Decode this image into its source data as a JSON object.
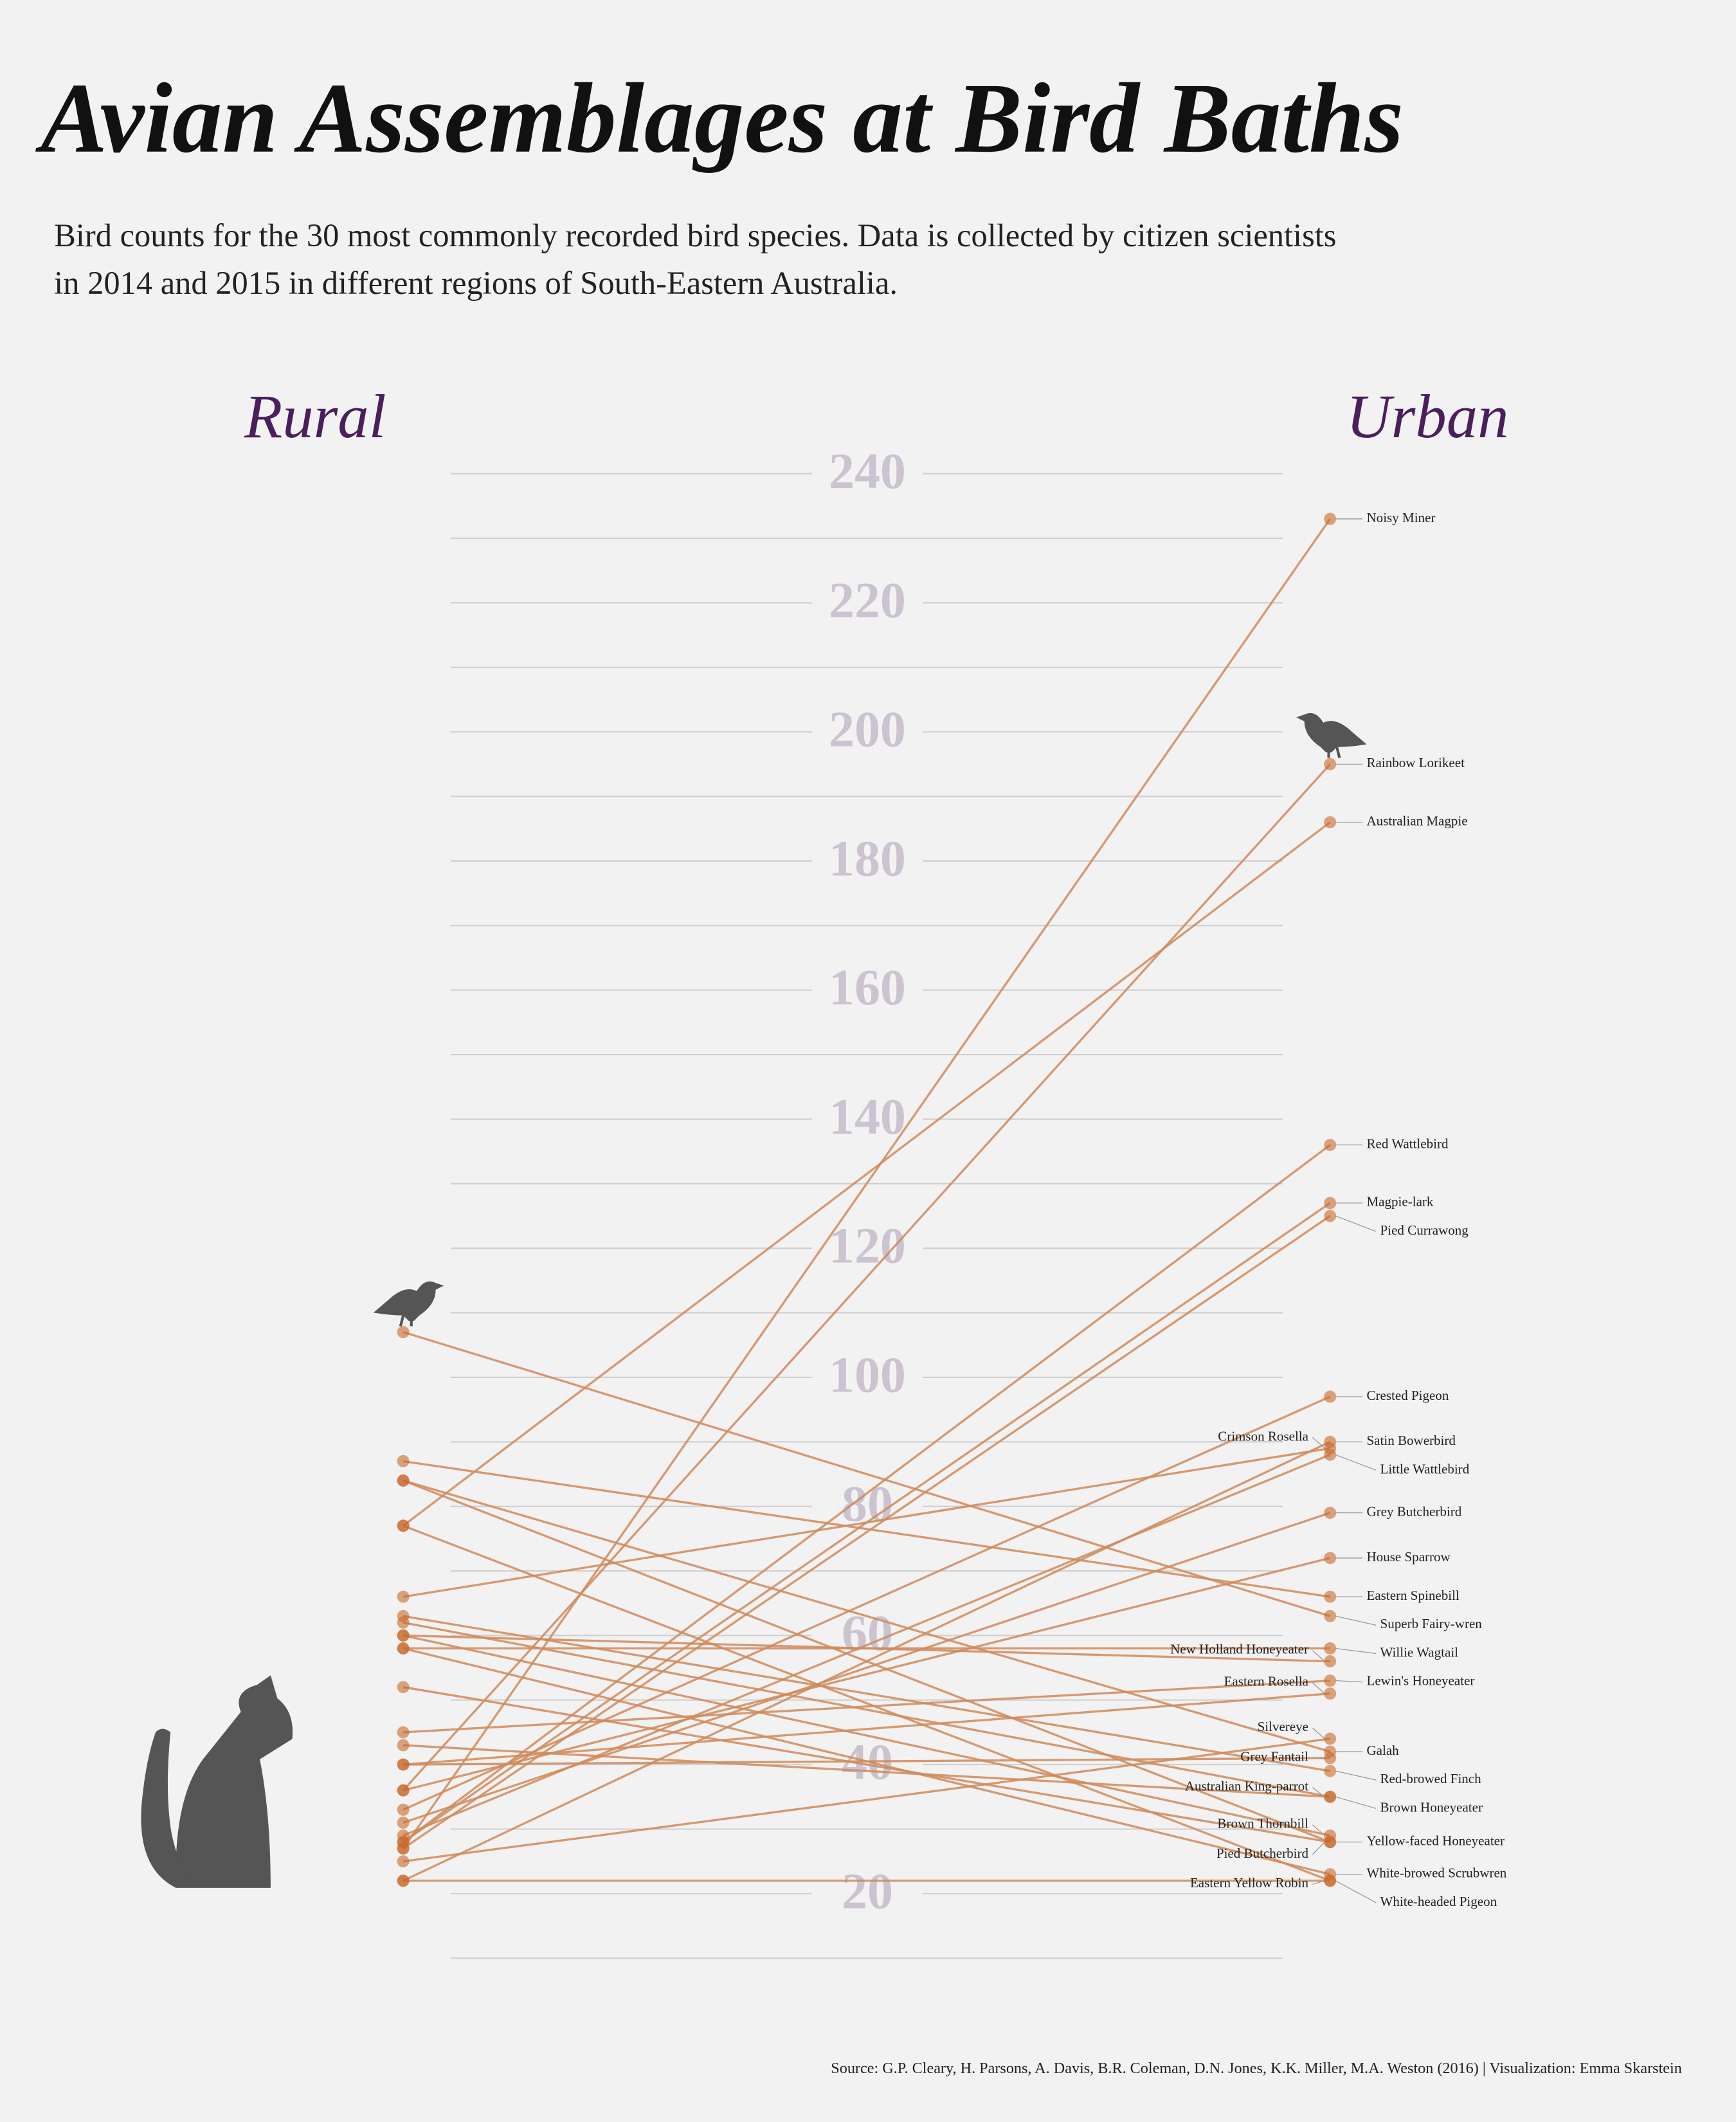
{
  "chart_data": {
    "type": "slope",
    "title": "Avian Assemblages at Bird Baths",
    "subtitle": [
      "Bird counts for the 30 most commonly recorded bird species. Data is collected by citizen scientists",
      "in 2014 and 2015 in different regions of South-Eastern Australia."
    ],
    "source": "Source: G.P. Cleary, H. Parsons, A. Davis, B.R. Coleman, D.N. Jones, K.K. Miller, M.A. Weston (2016)  |  Visualization: Emma Skarstein",
    "categories": [
      "Noisy Miner",
      "Rainbow Lorikeet",
      "Australian Magpie",
      "Red Wattlebird",
      "Magpie-lark",
      "Pied Currawong",
      "Crested Pigeon",
      "Crimson Rosella",
      "Satin Bowerbird",
      "Little Wattlebird",
      "Grey Butcherbird",
      "House Sparrow",
      "Eastern Spinebill",
      "Superb Fairy-wren",
      "Willie Wagtail",
      "New Holland Honeyeater",
      "Lewin's Honeyeater",
      "Eastern Rosella",
      "Silvereye",
      "Galah",
      "Grey Fantail",
      "Red-browed Finch",
      "Australian King-parrot",
      "Brown Honeyeater",
      "Brown Thornbill",
      "Yellow-faced Honeyeater",
      "Pied Butcherbird",
      "White-browed Scrubwren",
      "Eastern Yellow Robin",
      "White-headed Pigeon"
    ],
    "series": [
      {
        "name": "Rural",
        "color": "#c8692a",
        "values": [
          27,
          36,
          77,
          28,
          28,
          27,
          33,
          66,
          22,
          29,
          31,
          36,
          87,
          107,
          58,
          60,
          45,
          40,
          25,
          84,
          40,
          63,
          62,
          43,
          60,
          84,
          52,
          58,
          22,
          77
        ]
      },
      {
        "name": "Urban",
        "color": "#c8692a",
        "values": [
          233,
          195,
          186,
          136,
          127,
          125,
          97,
          89,
          90,
          88,
          79,
          72,
          66,
          63,
          58,
          56,
          53,
          51,
          44,
          42,
          41,
          39,
          35,
          35,
          29,
          28,
          28,
          23,
          22,
          22
        ]
      }
    ],
    "line_color": "#d0895a",
    "ylim": [
      10,
      240
    ],
    "yticks": [
      20,
      40,
      60,
      80,
      100,
      120,
      140,
      160,
      180,
      200,
      220,
      240
    ],
    "minor_yticks": [
      10,
      30,
      50,
      70,
      90,
      110,
      130,
      150,
      170,
      190,
      210,
      230
    ],
    "grid": true
  }
}
